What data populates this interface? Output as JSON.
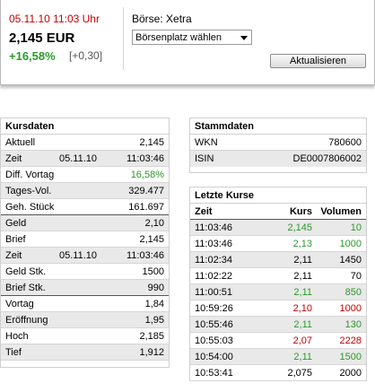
{
  "quote": {
    "datetime": "05.11.10  11:03 Uhr",
    "price": "2,145 EUR",
    "change_pct": "+16,58%",
    "change_abs": "[+0,30]",
    "exchange_label": "Börse: Xetra",
    "exchange_select": "Börsenplatz wählen",
    "refresh_label": "Aktualisieren"
  },
  "kursdaten": {
    "title": "Kursdaten",
    "rows": [
      {
        "label": "Aktuell",
        "mid": "",
        "value": "2,145",
        "shaded": false,
        "sep": false,
        "color": ""
      },
      {
        "label": "Zeit",
        "mid": "05.11.10",
        "value": "11:03:46",
        "shaded": true,
        "sep": false,
        "color": ""
      },
      {
        "label": "Diff. Vortag",
        "mid": "",
        "value": "16,58%",
        "shaded": false,
        "sep": false,
        "color": "green"
      },
      {
        "label": "Tages-Vol.",
        "mid": "",
        "value": "329.477",
        "shaded": true,
        "sep": false,
        "color": ""
      },
      {
        "label": "Geh. Stück",
        "mid": "",
        "value": "161.697",
        "shaded": false,
        "sep": true,
        "color": ""
      },
      {
        "label": "Geld",
        "mid": "",
        "value": "2,10",
        "shaded": true,
        "sep": false,
        "color": ""
      },
      {
        "label": "Brief",
        "mid": "",
        "value": "2,145",
        "shaded": false,
        "sep": false,
        "color": ""
      },
      {
        "label": "Zeit",
        "mid": "05.11.10",
        "value": "11:03:46",
        "shaded": true,
        "sep": false,
        "color": ""
      },
      {
        "label": "Geld Stk.",
        "mid": "",
        "value": "1500",
        "shaded": false,
        "sep": false,
        "color": ""
      },
      {
        "label": "Brief Stk.",
        "mid": "",
        "value": "990",
        "shaded": true,
        "sep": true,
        "color": ""
      },
      {
        "label": "Vortag",
        "mid": "",
        "value": "1,84",
        "shaded": false,
        "sep": false,
        "color": ""
      },
      {
        "label": "Eröffnung",
        "mid": "",
        "value": "1,95",
        "shaded": true,
        "sep": false,
        "color": ""
      },
      {
        "label": "Hoch",
        "mid": "",
        "value": "2,185",
        "shaded": false,
        "sep": false,
        "color": ""
      },
      {
        "label": "Tief",
        "mid": "",
        "value": "1,912",
        "shaded": true,
        "sep": false,
        "color": ""
      }
    ]
  },
  "stammdaten": {
    "title": "Stammdaten",
    "rows": [
      {
        "label": "WKN",
        "value": "780600",
        "shaded": false
      },
      {
        "label": "ISIN",
        "value": "DE0007806002",
        "shaded": true
      }
    ]
  },
  "letzte_kurse": {
    "title": "Letzte Kurse",
    "headers": {
      "time": "Zeit",
      "kurs": "Kurs",
      "volumen": "Volumen"
    },
    "rows": [
      {
        "time": "11:03:46",
        "kurs": "2,145",
        "volumen": "10",
        "color": "green"
      },
      {
        "time": "11:03:46",
        "kurs": "2,13",
        "volumen": "1000",
        "color": "green"
      },
      {
        "time": "11:02:34",
        "kurs": "2,11",
        "volumen": "1450",
        "color": ""
      },
      {
        "time": "11:02:22",
        "kurs": "2,11",
        "volumen": "70",
        "color": ""
      },
      {
        "time": "11:00:51",
        "kurs": "2,11",
        "volumen": "850",
        "color": "green"
      },
      {
        "time": "10:59:26",
        "kurs": "2,10",
        "volumen": "1000",
        "color": "red"
      },
      {
        "time": "10:55:46",
        "kurs": "2,11",
        "volumen": "130",
        "color": "green"
      },
      {
        "time": "10:55:03",
        "kurs": "2,07",
        "volumen": "2228",
        "color": "red"
      },
      {
        "time": "10:54:00",
        "kurs": "2,11",
        "volumen": "1500",
        "color": "green"
      },
      {
        "time": "10:53:41",
        "kurs": "2,075",
        "volumen": "2000",
        "color": ""
      }
    ]
  },
  "colors": {
    "positive": "#2a9a2a",
    "negative": "#c40000"
  }
}
